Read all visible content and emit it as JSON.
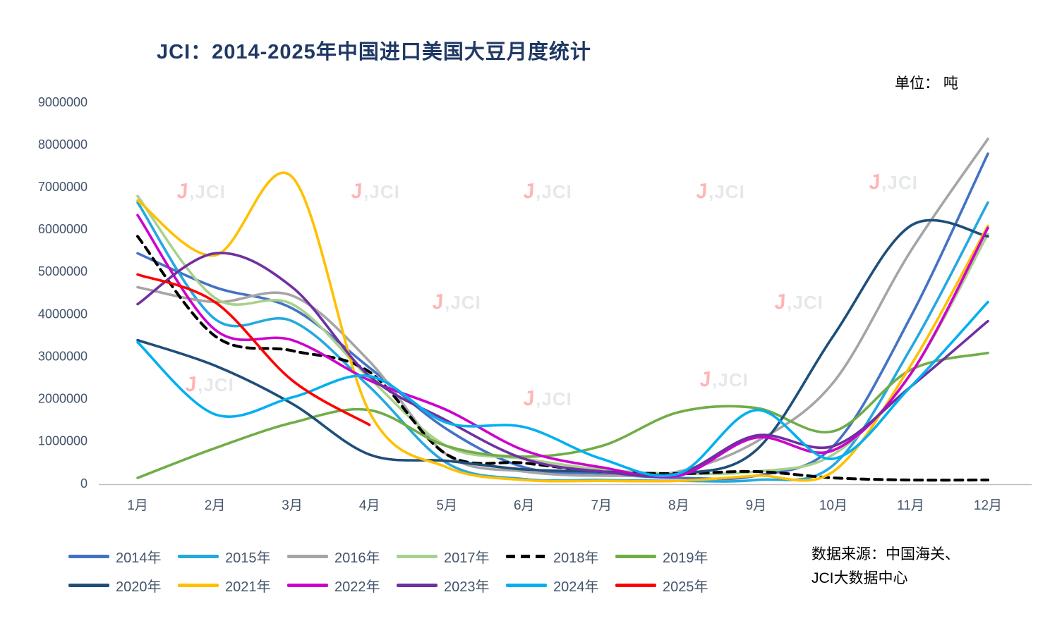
{
  "title": "JCI：2014-2025年中国进口美国大豆月度统计",
  "unit_label": "单位： 吨",
  "source": {
    "line1": "数据来源：中国海关、",
    "line2": "JCI大数据中心"
  },
  "watermark": {
    "logo": "J",
    "text": ",JCI"
  },
  "colors": {
    "title": "#1F3864",
    "axis_text": "#44546A",
    "axis_line": "#BFBFBF"
  },
  "chart_data": {
    "type": "line",
    "title": "JCI：2014-2025年中国进口美国大豆月度统计",
    "xlabel": "",
    "ylabel": "吨",
    "ylim": [
      0,
      9000000
    ],
    "y_ticks": [
      0,
      1000000,
      2000000,
      3000000,
      4000000,
      5000000,
      6000000,
      7000000,
      8000000,
      9000000
    ],
    "categories": [
      "1月",
      "2月",
      "3月",
      "4月",
      "5月",
      "6月",
      "7月",
      "8月",
      "9月",
      "10月",
      "11月",
      "12月"
    ],
    "grid": false,
    "legend_position": "bottom",
    "series": [
      {
        "name": "2014年",
        "color": "#4472C4",
        "dash": false,
        "values": [
          5450000,
          4650000,
          4150000,
          2750000,
          1300000,
          400000,
          250000,
          150000,
          200000,
          900000,
          3950000,
          7800000
        ]
      },
      {
        "name": "2015年",
        "color": "#25A8E0",
        "dash": false,
        "values": [
          6650000,
          3900000,
          3850000,
          2300000,
          500000,
          120000,
          100000,
          80000,
          100000,
          450000,
          3200000,
          6650000
        ]
      },
      {
        "name": "2016年",
        "color": "#A5A5A5",
        "dash": false,
        "values": [
          4650000,
          4300000,
          4450000,
          2900000,
          700000,
          300000,
          200000,
          300000,
          1000000,
          2400000,
          5500000,
          8150000
        ]
      },
      {
        "name": "2017年",
        "color": "#A9D18E",
        "dash": false,
        "values": [
          6800000,
          4400000,
          4250000,
          2500000,
          900000,
          600000,
          350000,
          250000,
          300000,
          700000,
          2600000,
          5900000
        ]
      },
      {
        "name": "2018年",
        "color": "#000000",
        "dash": true,
        "values": [
          5850000,
          3500000,
          3150000,
          2650000,
          700000,
          500000,
          300000,
          250000,
          300000,
          150000,
          100000,
          100000
        ]
      },
      {
        "name": "2019年",
        "color": "#70AD47",
        "dash": false,
        "values": [
          150000,
          850000,
          1450000,
          1750000,
          900000,
          650000,
          900000,
          1700000,
          1800000,
          1250000,
          2700000,
          3100000
        ]
      },
      {
        "name": "2020年",
        "color": "#1F4E79",
        "dash": false,
        "values": [
          3400000,
          2800000,
          1900000,
          700000,
          550000,
          350000,
          300000,
          250000,
          800000,
          3500000,
          6100000,
          5850000
        ]
      },
      {
        "name": "2021年",
        "color": "#FFC000",
        "dash": false,
        "values": [
          6700000,
          5400000,
          7250000,
          1700000,
          400000,
          100000,
          80000,
          80000,
          200000,
          300000,
          2800000,
          6100000
        ]
      },
      {
        "name": "2022年",
        "color": "#CC00CC",
        "dash": false,
        "values": [
          6350000,
          3650000,
          3400000,
          2450000,
          1750000,
          800000,
          400000,
          200000,
          1100000,
          800000,
          2600000,
          6050000
        ]
      },
      {
        "name": "2023年",
        "color": "#7030A0",
        "dash": false,
        "values": [
          4250000,
          5450000,
          4650000,
          2550000,
          1500000,
          600000,
          300000,
          250000,
          1150000,
          900000,
          2300000,
          3850000
        ]
      },
      {
        "name": "2024年",
        "color": "#00B0F0",
        "dash": false,
        "values": [
          3350000,
          1650000,
          2050000,
          2550000,
          1450000,
          1350000,
          600000,
          250000,
          1750000,
          600000,
          2300000,
          4300000
        ]
      },
      {
        "name": "2025年",
        "color": "#FF0000",
        "dash": false,
        "values": [
          4950000,
          4300000,
          2450000,
          1400000,
          null,
          null,
          null,
          null,
          null,
          null,
          null,
          null
        ]
      }
    ]
  }
}
